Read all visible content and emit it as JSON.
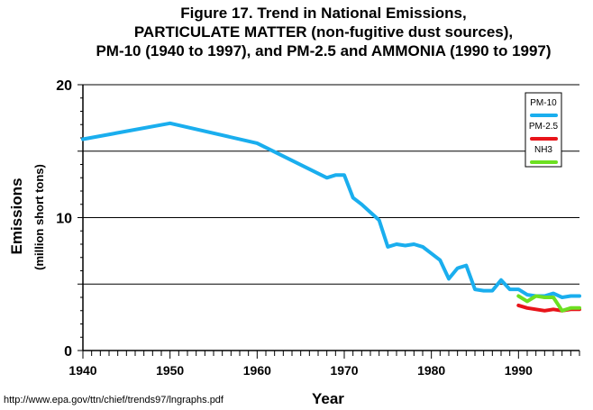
{
  "title_lines": [
    "Figure 17.  Trend in National Emissions,",
    "PARTICULATE MATTER (non-fugitive dust sources),",
    "PM-10 (1940 to 1997), and PM-2.5 and AMMONIA (1990 to 1997)"
  ],
  "source": "http://www.epa.gov/ttn/chief/trends97/lngraphs.pdf",
  "chart_data": {
    "type": "line",
    "title": "Figure 17.  Trend in National Emissions, PARTICULATE MATTER (non-fugitive dust sources), PM-10 (1940 to 1997), and PM-2.5 and AMMONIA (1990 to 1997)",
    "xlabel": "Year",
    "ylabel": "Emissions",
    "ylabel2": "(million short tons)",
    "xlim": [
      1940,
      1997
    ],
    "ylim": [
      0,
      20
    ],
    "xticks": [
      1940,
      1950,
      1960,
      1970,
      1980,
      1990
    ],
    "yticks": [
      0,
      10,
      20
    ],
    "grid": "horizontal",
    "legend_position": "top-right",
    "series": [
      {
        "name": "PM-10",
        "color": "#1AAEEE",
        "x": [
          1940,
          1950,
          1960,
          1968,
          1969,
          1970,
          1971,
          1972,
          1973,
          1974,
          1975,
          1976,
          1977,
          1978,
          1979,
          1980,
          1981,
          1982,
          1983,
          1984,
          1985,
          1986,
          1987,
          1988,
          1989,
          1990,
          1991,
          1992,
          1993,
          1994,
          1995,
          1996,
          1997
        ],
        "y": [
          15.9,
          17.1,
          15.6,
          13.0,
          13.2,
          13.2,
          11.5,
          11.0,
          10.4,
          9.8,
          7.8,
          8.0,
          7.9,
          8.0,
          7.8,
          7.3,
          6.8,
          5.4,
          6.2,
          6.4,
          4.6,
          4.5,
          4.5,
          5.3,
          4.6,
          4.6,
          4.2,
          4.1,
          4.1,
          4.3,
          4.0,
          4.1,
          4.1
        ]
      },
      {
        "name": "PM-2.5",
        "color": "#E8141A",
        "x": [
          1990,
          1991,
          1992,
          1993,
          1994,
          1995,
          1996,
          1997
        ],
        "y": [
          3.4,
          3.2,
          3.1,
          3.0,
          3.1,
          3.0,
          3.1,
          3.1
        ]
      },
      {
        "name": "NH3",
        "color": "#6CE021",
        "x": [
          1990,
          1991,
          1992,
          1993,
          1994,
          1995,
          1996,
          1997
        ],
        "y": [
          4.1,
          3.7,
          4.1,
          4.0,
          4.0,
          3.0,
          3.2,
          3.2
        ]
      }
    ]
  }
}
